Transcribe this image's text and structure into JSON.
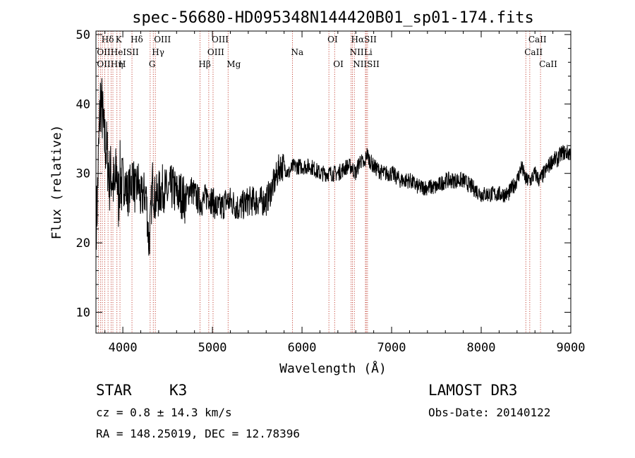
{
  "chart_data": {
    "type": "line",
    "title": "spec-56680-HD095348N144420B01_sp01-174.fits",
    "xlabel": "Wavelength (Å)",
    "ylabel": "Flux (relative)",
    "xlim": [
      3700,
      9000
    ],
    "ylim": [
      7,
      50.5
    ],
    "xticks": [
      4000,
      5000,
      6000,
      7000,
      8000,
      9000
    ],
    "yticks": [
      10,
      20,
      30,
      40,
      50
    ],
    "spectral_lines": [
      {
        "label": "Hδ",
        "wavelength": 3777,
        "row": 0
      },
      {
        "label": "K",
        "wavelength": 3934,
        "row": 0
      },
      {
        "label": "Hδ",
        "wavelength": 4102,
        "row": 0
      },
      {
        "label": "OIII",
        "wavelength": 4363,
        "row": 0
      },
      {
        "label": "OIII",
        "wavelength": 5007,
        "row": 0
      },
      {
        "label": "OI",
        "wavelength": 6300,
        "row": 0
      },
      {
        "label": "HαSII",
        "wavelength": 6563,
        "row": 0
      },
      {
        "label": "CaII",
        "wavelength": 8542,
        "row": 0
      },
      {
        "label": "OIIHeISII",
        "wavelength": 3727,
        "row": 1
      },
      {
        "label": "Hγ",
        "wavelength": 4340,
        "row": 1
      },
      {
        "label": "OIII",
        "wavelength": 4959,
        "row": 1
      },
      {
        "label": "Na",
        "wavelength": 5893,
        "row": 1
      },
      {
        "label": "NII",
        "wavelength": 6548,
        "row": 1
      },
      {
        "label": "Li",
        "wavelength": 6708,
        "row": 1
      },
      {
        "label": "CaII",
        "wavelength": 8498,
        "row": 1
      },
      {
        "label": "OIIHη",
        "wavelength": 3727,
        "row": 2
      },
      {
        "label": "H",
        "wavelength": 3968,
        "row": 2
      },
      {
        "label": "G",
        "wavelength": 4305,
        "row": 2
      },
      {
        "label": "Hβ",
        "wavelength": 4861,
        "row": 2
      },
      {
        "label": "Mg",
        "wavelength": 5175,
        "row": 2
      },
      {
        "label": "OI",
        "wavelength": 6364,
        "row": 2
      },
      {
        "label": "NIISII",
        "wavelength": 6584,
        "row": 2
      },
      {
        "label": "CaII",
        "wavelength": 8662,
        "row": 2
      }
    ],
    "line_markers": [
      3727,
      3750,
      3771,
      3798,
      3835,
      3869,
      3889,
      3934,
      3968,
      4102,
      4305,
      4340,
      4363,
      4861,
      4959,
      5007,
      5175,
      5893,
      6300,
      6364,
      6548,
      6563,
      6584,
      6708,
      6717,
      6731,
      8498,
      8542,
      8662
    ],
    "series": [
      {
        "x": [
          3710,
          3730,
          3750,
          3770,
          3790,
          3810,
          3830,
          3850,
          3870,
          3890,
          3910,
          3930,
          3950,
          3970,
          3990,
          4020,
          4050,
          4080,
          4110,
          4140,
          4170,
          4200,
          4230,
          4260,
          4290,
          4310,
          4330,
          4360,
          4400,
          4450,
          4500,
          4550,
          4600,
          4650,
          4700,
          4750,
          4800,
          4850,
          4900,
          4950,
          5000,
          5050,
          5100,
          5150,
          5200,
          5300,
          5400,
          5500,
          5600,
          5700,
          5750,
          5800,
          5850,
          5900,
          5950,
          6000,
          6100,
          6200,
          6300,
          6400,
          6500,
          6550,
          6600,
          6650,
          6700,
          6720,
          6750,
          6800,
          6900,
          7000,
          7100,
          7200,
          7300,
          7400,
          7500,
          7600,
          7700,
          7800,
          7900,
          8000,
          8100,
          8200,
          8300,
          8400,
          8450,
          8500,
          8550,
          8600,
          8650,
          8700,
          8750,
          8800,
          8850,
          8900,
          8950,
          9000
        ],
        "y": [
          24,
          33,
          41,
          39,
          35,
          34,
          32,
          29,
          30,
          29,
          27,
          31,
          26,
          30,
          28,
          29,
          27,
          28,
          30,
          27,
          29,
          26,
          27,
          27,
          20,
          23,
          29,
          26,
          27,
          28,
          27,
          28,
          27,
          27,
          26,
          28,
          27,
          26,
          26,
          27,
          26,
          25,
          25,
          26,
          26,
          25,
          26,
          26,
          26,
          29,
          31,
          31,
          30,
          31,
          31,
          31,
          31,
          30,
          30,
          30,
          31,
          31,
          30,
          32,
          31,
          33,
          32,
          31,
          30,
          30,
          29,
          29,
          28,
          28,
          28,
          29,
          29,
          29,
          28,
          27,
          27,
          27,
          27,
          29,
          31,
          29,
          29,
          30,
          29,
          30,
          31,
          32,
          32,
          33,
          33,
          33
        ]
      }
    ]
  },
  "info": {
    "object_class": "STAR",
    "subclass": "K3",
    "survey": "LAMOST DR3",
    "cz": "cz = 0.8 ± 14.3 km/s",
    "obs_date": "Obs-Date: 20140122",
    "coords": "RA = 148.25019, DEC =  12.78396"
  }
}
